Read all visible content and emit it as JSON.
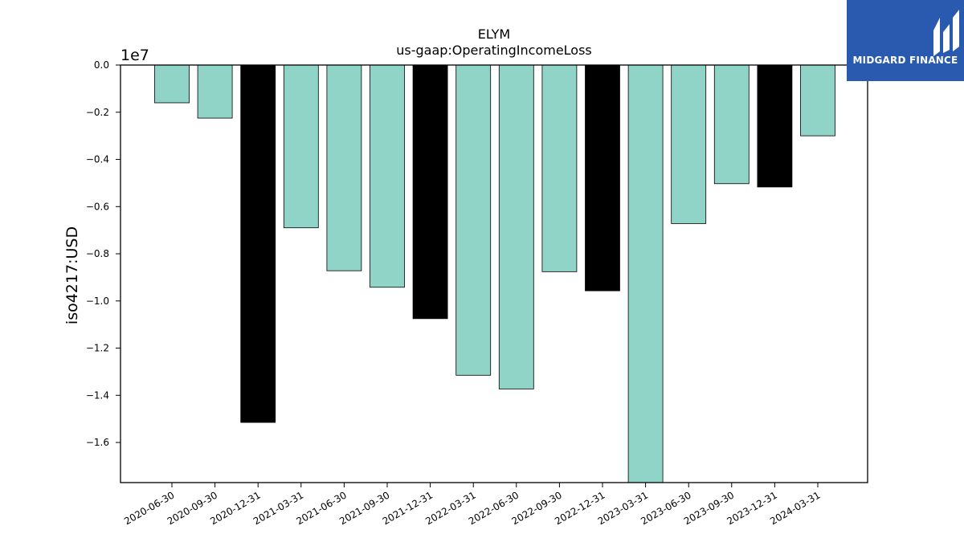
{
  "brand": {
    "name": "MIDGARD FINANCE",
    "accent": "#2a5ab0"
  },
  "chart_data": {
    "type": "bar",
    "title": "ELYM",
    "subtitle": "us-gaap:OperatingIncomeLoss",
    "ylabel": "iso4217:USD",
    "xlabel": "",
    "y_offset_label": "1e7",
    "y_scale": 10000000,
    "ylim": [
      -1.77,
      0
    ],
    "yticks": [
      0,
      -0.2,
      -0.4,
      -0.6,
      -0.8,
      -1.0,
      -1.2,
      -1.4,
      -1.6
    ],
    "ytick_labels": [
      "0.0",
      "−0.2",
      "−0.4",
      "−0.6",
      "−0.8",
      "−1.0",
      "−1.2",
      "−1.4",
      "−1.6"
    ],
    "categories": [
      "2020-06-30",
      "2020-09-30",
      "2020-12-31",
      "2021-03-31",
      "2021-06-30",
      "2021-09-30",
      "2021-12-31",
      "2022-03-31",
      "2022-06-30",
      "2022-09-30",
      "2022-12-31",
      "2023-03-31",
      "2023-06-30",
      "2023-09-30",
      "2023-12-31",
      "2024-03-31"
    ],
    "values": [
      -0.16,
      -0.225,
      -1.515,
      -0.69,
      -0.872,
      -0.942,
      -1.075,
      -1.315,
      -1.373,
      -0.876,
      -0.957,
      -1.77,
      -0.672,
      -0.503,
      -0.517,
      -0.3
    ],
    "bar_colors": [
      "#8fd4c7",
      "#8fd4c7",
      "#000000",
      "#8fd4c7",
      "#8fd4c7",
      "#8fd4c7",
      "#000000",
      "#8fd4c7",
      "#8fd4c7",
      "#8fd4c7",
      "#000000",
      "#8fd4c7",
      "#8fd4c7",
      "#8fd4c7",
      "#000000",
      "#8fd4c7"
    ],
    "grid": false
  }
}
